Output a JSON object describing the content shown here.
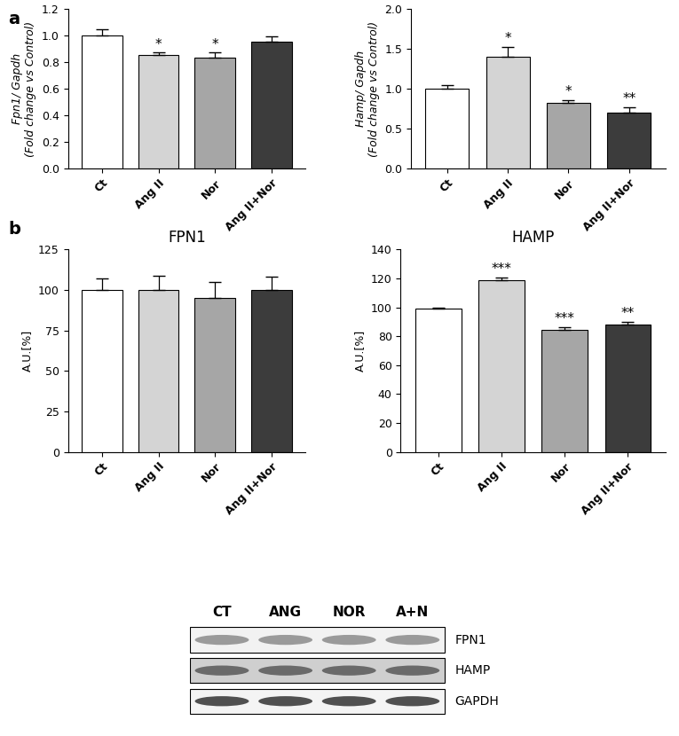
{
  "panel_labels": [
    "a",
    "b"
  ],
  "chart_data": [
    {
      "type": "bar",
      "ylabel": "Fpn1/ Gapdh\n(Fold change vs Control)",
      "categories": [
        "Ct",
        "Ang II",
        "Nor",
        "Ang II+Nor"
      ],
      "values": [
        1.0,
        0.85,
        0.83,
        0.955
      ],
      "errors": [
        0.045,
        0.02,
        0.04,
        0.035
      ],
      "annotations": [
        null,
        "*",
        "*",
        null
      ],
      "colors": [
        "#ffffff",
        "#d4d4d4",
        "#a6a6a6",
        "#3c3c3c"
      ],
      "ylim": [
        0,
        1.2
      ],
      "yticks": [
        {
          "value": 0,
          "label": "0.0"
        },
        0.2,
        0.4,
        0.6,
        0.8,
        {
          "value": 1,
          "label": "1.0"
        },
        1.2
      ]
    },
    {
      "type": "bar",
      "ylabel": "Hamp/ Gapdh\n(Fold change vs Control)",
      "categories": [
        "Ct",
        "Ang II",
        "Nor",
        "Ang II+Nor"
      ],
      "values": [
        1.0,
        1.4,
        0.82,
        0.7
      ],
      "errors": [
        0.05,
        0.12,
        0.04,
        0.07
      ],
      "annotations": [
        null,
        "*",
        "*",
        "**"
      ],
      "colors": [
        "#ffffff",
        "#d4d4d4",
        "#a6a6a6",
        "#3c3c3c"
      ],
      "ylim": [
        0,
        2
      ],
      "yticks": [
        {
          "value": 0,
          "label": "0.0"
        },
        0.5,
        {
          "value": 1,
          "label": "1.0"
        },
        1.5,
        {
          "value": 2,
          "label": "2.0"
        }
      ]
    },
    {
      "type": "bar",
      "title": "FPN1",
      "ylabel": "A.U.[%]",
      "categories": [
        "Ct",
        "Ang II",
        "Nor",
        "Ang II+Nor"
      ],
      "values": [
        100,
        100,
        95,
        100
      ],
      "errors": [
        7,
        9,
        10,
        8
      ],
      "annotations": [
        null,
        null,
        null,
        null
      ],
      "colors": [
        "#ffffff",
        "#d4d4d4",
        "#a6a6a6",
        "#3c3c3c"
      ],
      "ylim": [
        0,
        125
      ],
      "yticks": [
        0,
        25,
        50,
        75,
        100,
        125
      ]
    },
    {
      "type": "bar",
      "title": "HAMP",
      "ylabel": "A.U.[%]",
      "categories": [
        "Ct",
        "Ang II",
        "Nor",
        "Ang II+Nor"
      ],
      "values": [
        99,
        118.5,
        84.5,
        88
      ],
      "errors": [
        1,
        2,
        1.5,
        2
      ],
      "annotations": [
        null,
        "***",
        "***",
        "**"
      ],
      "colors": [
        "#ffffff",
        "#d4d4d4",
        "#a6a6a6",
        "#3c3c3c"
      ],
      "ylim": [
        0,
        140
      ],
      "yticks": [
        0,
        20,
        40,
        60,
        80,
        100,
        120,
        140
      ]
    }
  ],
  "blot": {
    "columns": [
      "CT",
      "ANG",
      "NOR",
      "A+N"
    ],
    "rows": [
      "FPN1",
      "HAMP",
      "GAPDH"
    ]
  }
}
